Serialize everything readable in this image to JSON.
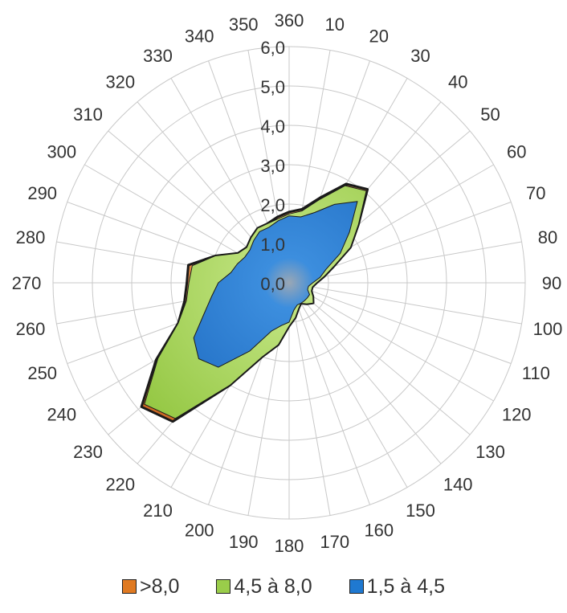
{
  "chart_data": {
    "type": "radar",
    "direction_ticks": [
      "360",
      "10",
      "20",
      "30",
      "40",
      "50",
      "60",
      "70",
      "80",
      "90",
      "100",
      "110",
      "120",
      "130",
      "140",
      "150",
      "160",
      "170",
      "180",
      "190",
      "200",
      "210",
      "220",
      "230",
      "240",
      "250",
      "260",
      "270",
      "280",
      "290",
      "300",
      "310",
      "320",
      "330",
      "340",
      "350"
    ],
    "radial_ticks": [
      "0,0",
      "1,0",
      "2,0",
      "3,0",
      "4,0",
      "5,0",
      "6,0"
    ],
    "rlim": [
      0,
      6
    ],
    "angles": [
      0,
      10,
      20,
      30,
      40,
      50,
      60,
      70,
      80,
      90,
      100,
      110,
      120,
      130,
      140,
      150,
      160,
      170,
      180,
      190,
      200,
      210,
      220,
      230,
      240,
      250,
      260,
      270,
      280,
      290,
      300,
      310,
      320,
      330,
      340,
      350
    ],
    "series": [
      {
        "name": ">8,0",
        "color": "#e07a22",
        "values": [
          1.8,
          1.9,
          2.3,
          2.9,
          3.1,
          2.3,
          1.8,
          1.2,
          0.9,
          0.7,
          0.6,
          0.6,
          0.7,
          0.8,
          0.7,
          0.6,
          0.7,
          0.9,
          1.1,
          1.6,
          2.0,
          3.0,
          4.6,
          4.9,
          3.9,
          3.0,
          2.7,
          2.6,
          2.6,
          2.0,
          1.5,
          1.4,
          1.5,
          1.6,
          1.6,
          1.7
        ]
      },
      {
        "name": "4,5 à 8,0",
        "color": "#9acd4a",
        "values": [
          1.75,
          1.85,
          2.25,
          2.85,
          3.05,
          2.3,
          1.8,
          1.2,
          0.9,
          0.7,
          0.6,
          0.6,
          0.7,
          0.8,
          0.7,
          0.6,
          0.7,
          0.9,
          1.1,
          1.6,
          2.0,
          3.0,
          4.5,
          4.8,
          3.85,
          3.0,
          2.65,
          2.55,
          2.5,
          2.0,
          1.5,
          1.4,
          1.5,
          1.6,
          1.6,
          1.65
        ]
      },
      {
        "name": "1,5 à 4,5",
        "color": "#1f79d1",
        "values": [
          1.7,
          1.7,
          1.9,
          2.3,
          2.7,
          2.0,
          1.5,
          1.0,
          0.8,
          0.6,
          0.5,
          0.5,
          0.6,
          0.6,
          0.6,
          0.6,
          0.6,
          0.7,
          1.0,
          1.1,
          1.3,
          2.0,
          2.8,
          3.0,
          2.8,
          2.3,
          2.0,
          1.8,
          1.5,
          1.4,
          1.3,
          1.3,
          1.4,
          1.5,
          1.5,
          1.6
        ]
      }
    ],
    "legend_position": "bottom",
    "grid": true
  },
  "legend": {
    "items": [
      {
        "label": ">8,0",
        "color": "#e07a22"
      },
      {
        "label": "4,5 à 8,0",
        "color": "#9acd4a"
      },
      {
        "label": "1,5 à 4,5",
        "color": "#1f79d1"
      }
    ]
  }
}
